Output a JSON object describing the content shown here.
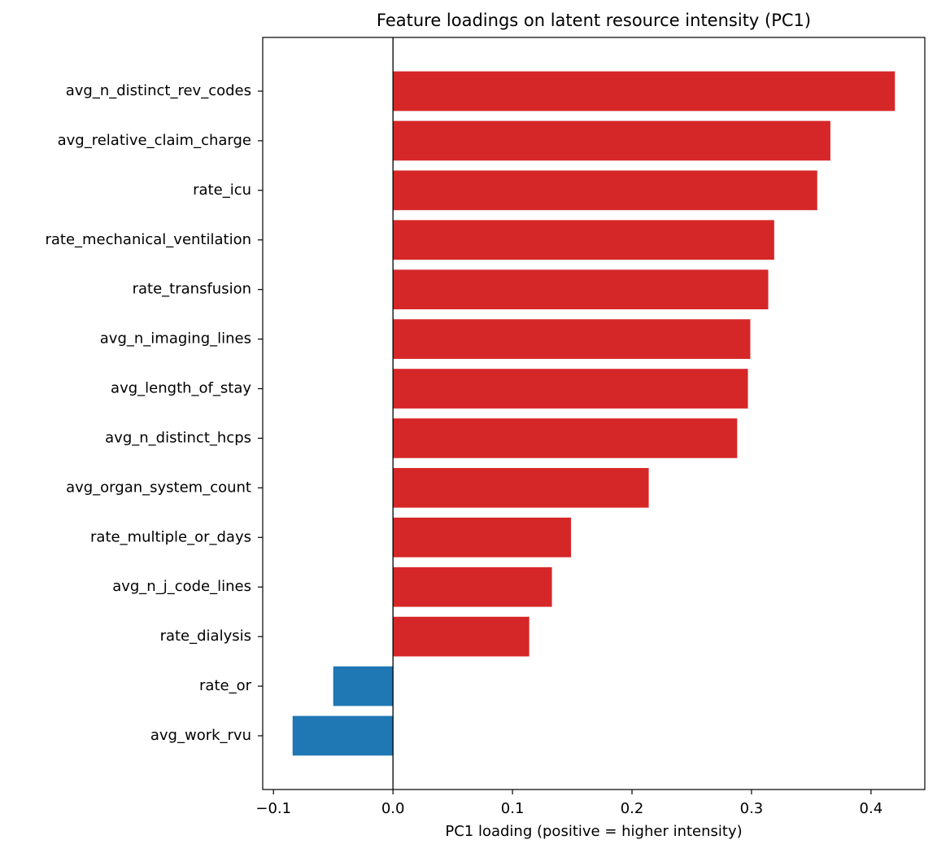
{
  "chart_data": {
    "type": "barh",
    "title": "Feature loadings on latent resource intensity (PC1)",
    "x_label": "PC1 loading (positive = higher intensity)",
    "categories": [
      "avg_n_distinct_rev_codes",
      "avg_relative_claim_charge",
      "rate_icu",
      "rate_mechanical_ventilation",
      "rate_transfusion",
      "avg_n_imaging_lines",
      "avg_length_of_stay",
      "avg_n_distinct_hcps",
      "avg_organ_system_count",
      "rate_multiple_or_days",
      "avg_n_j_code_lines",
      "rate_dialysis",
      "rate_or",
      "avg_work_rvu"
    ],
    "values": [
      0.42,
      0.366,
      0.355,
      0.319,
      0.314,
      0.299,
      0.297,
      0.288,
      0.214,
      0.149,
      0.133,
      0.114,
      -0.05,
      -0.084
    ],
    "colors": [
      "#d62728",
      "#d62728",
      "#d62728",
      "#d62728",
      "#d62728",
      "#d62728",
      "#d62728",
      "#d62728",
      "#d62728",
      "#d62728",
      "#d62728",
      "#d62728",
      "#1f77b4",
      "#1f77b4"
    ],
    "xlim": [
      -0.109,
      0.445
    ],
    "xticks": [
      {
        "value": -0.1,
        "label": "−0.1"
      },
      {
        "value": 0,
        "label": "0.0"
      },
      0.1,
      0.2,
      0.3,
      0.4
    ],
    "zero_line": true
  }
}
